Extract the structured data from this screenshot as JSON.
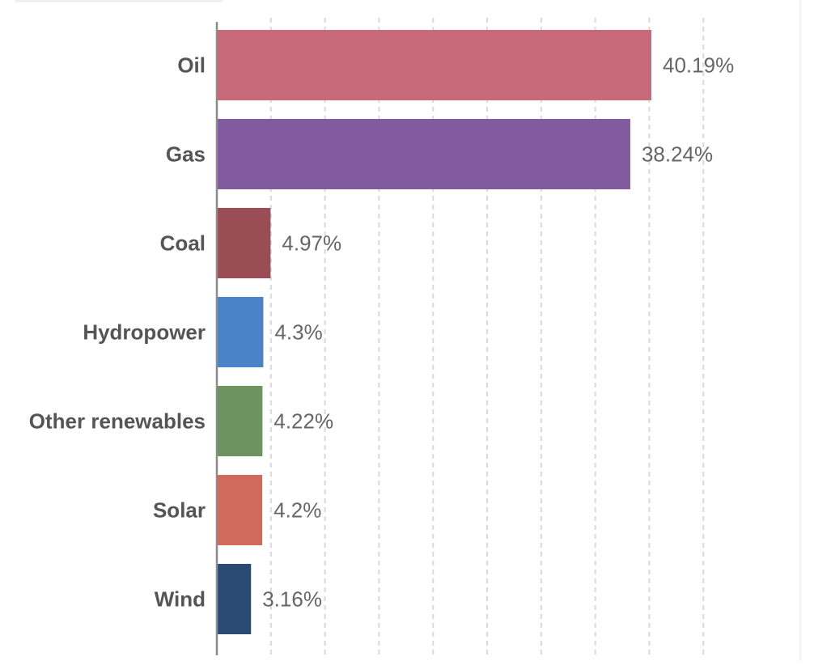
{
  "chart_data": {
    "type": "bar",
    "orientation": "horizontal",
    "categories": [
      "Oil",
      "Gas",
      "Coal",
      "Hydropower",
      "Other renewables",
      "Solar",
      "Wind"
    ],
    "values": [
      40.19,
      38.24,
      4.97,
      4.3,
      4.22,
      4.2,
      3.16
    ],
    "value_labels": [
      "40.19%",
      "38.24%",
      "4.97%",
      "4.3%",
      "4.22%",
      "4.2%",
      "3.16%"
    ],
    "colors": [
      "#c8697a",
      "#825b9e",
      "#9a4d54",
      "#4a83c8",
      "#6c9360",
      "#d06b5b",
      "#284a73"
    ],
    "xlim": [
      0,
      45
    ],
    "grid": "vertical dashed",
    "legend": "none",
    "title": "",
    "xlabel": "",
    "ylabel": ""
  }
}
